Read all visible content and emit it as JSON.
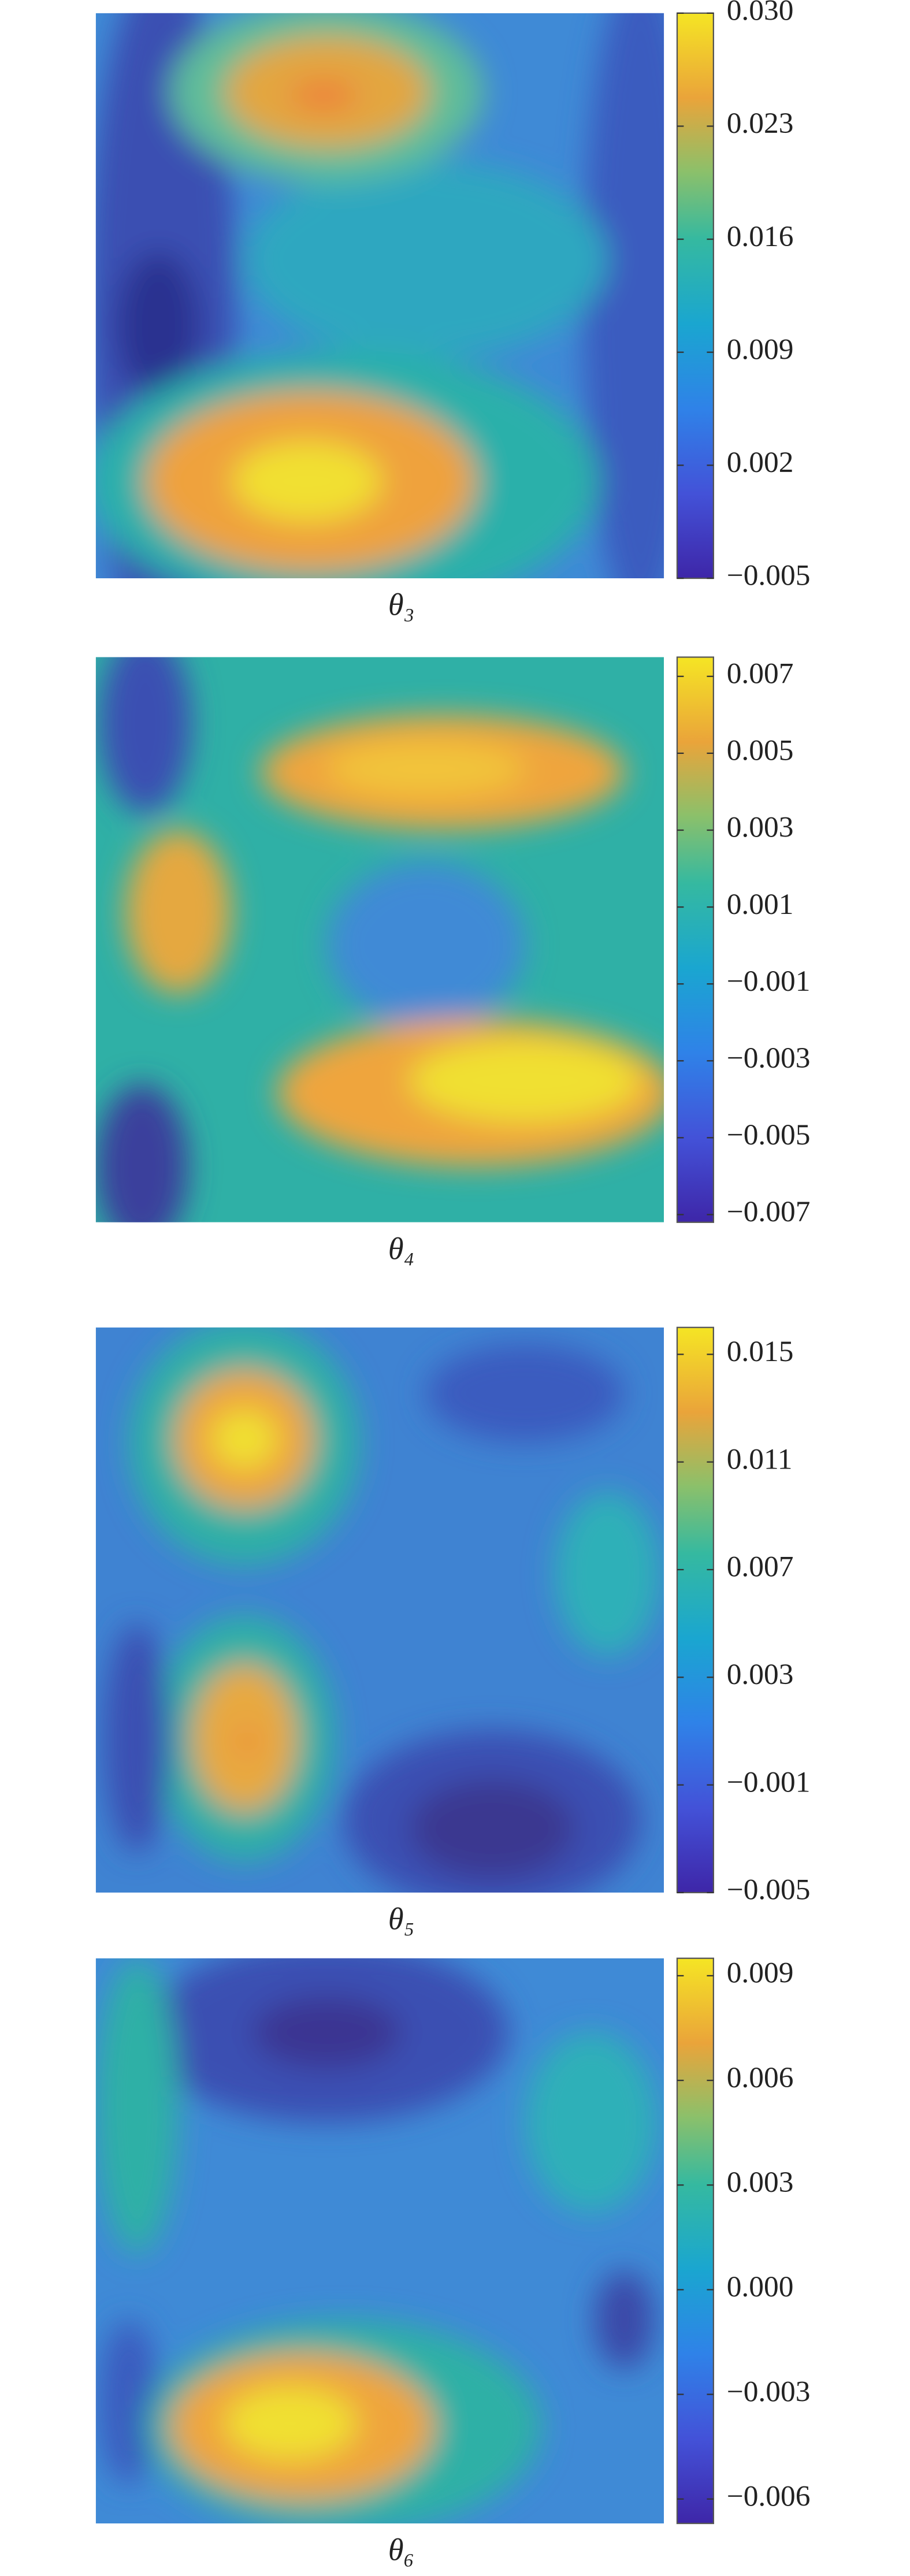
{
  "chart_data": [
    {
      "type": "contour",
      "xlabel": "θ₃",
      "clim": [
        -0.005,
        0.03
      ],
      "cticks": [
        {
          "value": -0.005,
          "label": "−0.005"
        },
        0.002,
        0.009,
        0.016,
        0.023,
        {
          "value": 0.03,
          "label": "0.030"
        }
      ]
    },
    {
      "type": "contour",
      "xlabel": "θ₄",
      "clim": [
        -0.0072,
        0.0075
      ],
      "cticks": [
        {
          "value": -0.007,
          "label": "−0.007"
        },
        {
          "value": -0.005,
          "label": "−0.005"
        },
        {
          "value": -0.003,
          "label": "−0.003"
        },
        {
          "value": -0.001,
          "label": "−0.001"
        },
        0.001,
        0.003,
        0.005,
        0.007
      ]
    },
    {
      "type": "contour",
      "xlabel": "θ₅",
      "clim": [
        -0.005,
        0.016
      ],
      "cticks": [
        {
          "value": -0.005,
          "label": "−0.005"
        },
        {
          "value": -0.001,
          "label": "−0.001"
        },
        0.003,
        0.007,
        0.011,
        0.015
      ]
    },
    {
      "type": "contour",
      "xlabel": "θ₆",
      "clim": [
        -0.0067,
        0.0095
      ],
      "cticks": [
        {
          "value": -0.006,
          "label": "−0.006"
        },
        {
          "value": -0.003,
          "label": "−0.003"
        },
        {
          "value": 0,
          "label": "0.000"
        },
        0.003,
        0.006,
        0.009
      ]
    }
  ]
}
